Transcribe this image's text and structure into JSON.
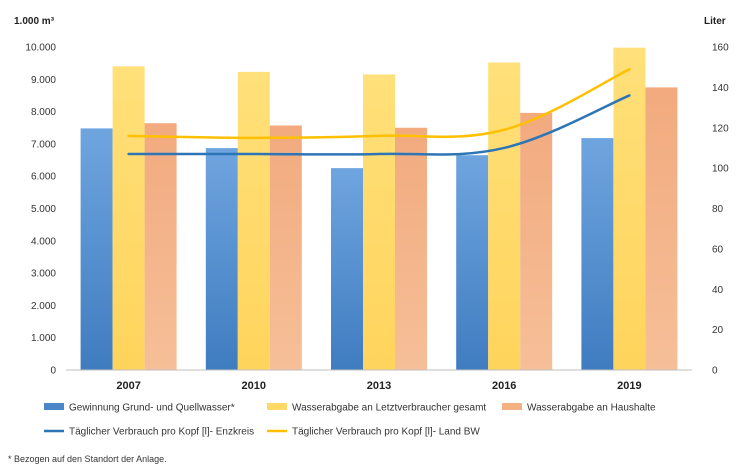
{
  "chart_data": {
    "type": "bar",
    "left_axis_unit": "1.000 m³",
    "right_axis_unit": "Liter",
    "left_ticks": [
      "0",
      "1.000",
      "2.000",
      "3.000",
      "4.000",
      "5.000",
      "6.000",
      "7.000",
      "8.000",
      "9.000",
      "10.000"
    ],
    "right_ticks": [
      "0",
      "20",
      "40",
      "60",
      "80",
      "100",
      "120",
      "140",
      "160"
    ],
    "ylim_left": [
      0,
      10000
    ],
    "ylim_right": [
      0,
      160
    ],
    "grid": false,
    "categories": [
      "2007",
      "2010",
      "2013",
      "2016",
      "2019"
    ],
    "bar_series": [
      {
        "name": "Gewinnung Grund- und Quellwasser*",
        "color": "#4a86c8",
        "values": [
          7480,
          6870,
          6250,
          6650,
          7180
        ]
      },
      {
        "name": "Wasserabgabe an Letztverbraucher gesamt",
        "color": "#ffd966",
        "values": [
          9400,
          9230,
          9150,
          9520,
          9980
        ]
      },
      {
        "name": "Wasserabgabe an Haushalte",
        "color": "#f4b183",
        "values": [
          7640,
          7570,
          7500,
          7960,
          8750
        ]
      }
    ],
    "line_series": [
      {
        "name": "Täglicher Verbrauch pro Kopf [l]- Enzkreis",
        "color": "#2e75b6",
        "axis": "right",
        "values": [
          107,
          107,
          107,
          110,
          136
        ]
      },
      {
        "name": "Täglicher Verbrauch pro Kopf [l]- Land BW",
        "color": "#ffc000",
        "axis": "right",
        "values": [
          116,
          115,
          116,
          119,
          149
        ]
      }
    ],
    "legend_position": "bottom",
    "footnote": "* Bezogen auf den Standort der Anlage."
  }
}
